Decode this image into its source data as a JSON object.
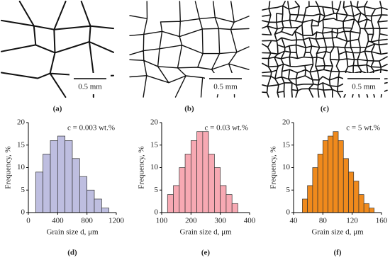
{
  "panels": [
    {
      "panel_label": "(a)",
      "scale_bar": "0.5 mm"
    },
    {
      "panel_label": "(b)",
      "scale_bar": "0.5 mm"
    },
    {
      "panel_label": "(c)",
      "scale_bar": "0.5 mm"
    }
  ],
  "chart_data": [
    {
      "type": "histogram",
      "panel_label": "(d)",
      "annotation": "c = 0.003 wt.%",
      "x_label": "Grain size d, μm",
      "y_label": "Frequency, %",
      "color": "#bebee0",
      "bins": [
        100,
        200,
        300,
        400,
        500,
        600,
        700,
        800,
        900,
        1000,
        1100
      ],
      "values": [
        9,
        13,
        16,
        17,
        16,
        12,
        8,
        5,
        3,
        1
      ],
      "xlim": [
        0,
        1200
      ],
      "xticks": [
        0,
        400,
        800,
        1200
      ],
      "ylim": [
        0,
        20
      ],
      "yticks": [
        0,
        5,
        10,
        15,
        20
      ]
    },
    {
      "type": "histogram",
      "panel_label": "(e)",
      "annotation": "c = 0.03 wt.%",
      "x_label": "Grain size d, μm",
      "y_label": "Frequency, %",
      "color": "#f7a9b3",
      "bins": [
        120,
        140,
        160,
        180,
        200,
        220,
        240,
        260,
        280,
        300,
        320,
        340,
        360
      ],
      "values": [
        4,
        6,
        10,
        13,
        16,
        18,
        18,
        13,
        10,
        6,
        4,
        2
      ],
      "xlim": [
        100,
        400
      ],
      "xticks": [
        100,
        200,
        300,
        400
      ],
      "ylim": [
        0,
        20
      ],
      "yticks": [
        0,
        5,
        10,
        15,
        20
      ]
    },
    {
      "type": "histogram",
      "panel_label": "(f)",
      "annotation": "c = 5 wt.%",
      "x_label": "Grain size d, μm",
      "y_label": "Frequency, %",
      "color": "#f08a1c",
      "bins": [
        52,
        59,
        66,
        73,
        80,
        87,
        94,
        101,
        108,
        115,
        122,
        129,
        136,
        143,
        150
      ],
      "values": [
        3,
        6,
        10,
        13,
        16,
        17,
        18,
        16,
        12,
        9,
        7,
        4,
        2,
        1
      ],
      "xlim": [
        40,
        160
      ],
      "xticks": [
        40,
        80,
        120,
        160
      ],
      "ylim": [
        0,
        20
      ],
      "yticks": [
        0,
        5,
        10,
        15,
        20
      ]
    }
  ]
}
